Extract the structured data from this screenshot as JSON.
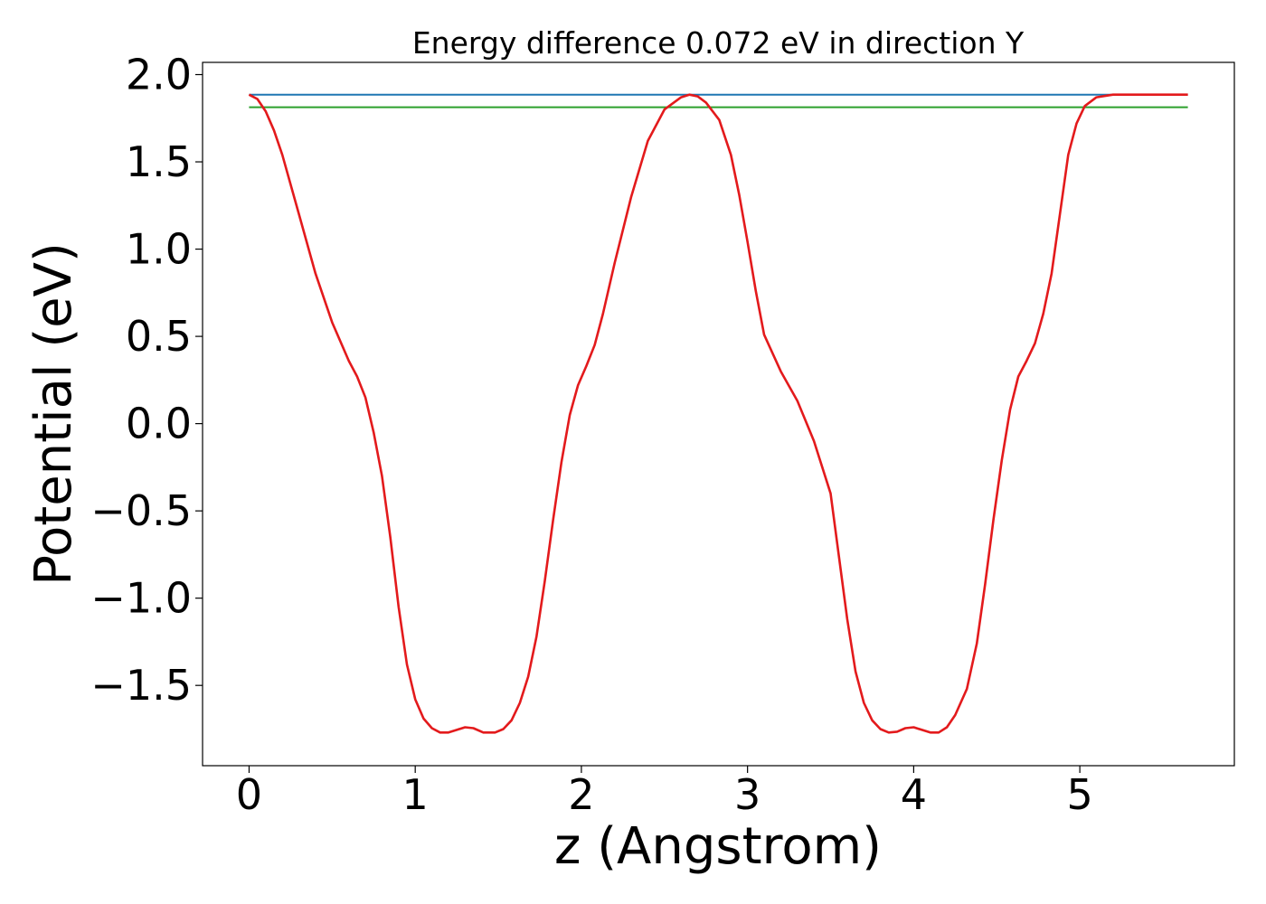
{
  "chart_data": {
    "type": "line",
    "title": "Energy difference 0.072 eV in direction Y",
    "xlabel": "z (Angstrom)",
    "ylabel": "Potential (eV)",
    "xlim": [
      -0.28,
      5.93
    ],
    "ylim": [
      -1.96,
      2.07
    ],
    "x_ticks": [
      0,
      1,
      2,
      3,
      4,
      5
    ],
    "x_tick_labels": [
      "0",
      "1",
      "2",
      "3",
      "4",
      "5"
    ],
    "y_ticks": [
      2.0,
      1.5,
      1.0,
      0.5,
      0.0,
      -0.5,
      -1.0,
      -1.5
    ],
    "y_tick_labels": [
      "2.0",
      "1.5",
      "1.0",
      "0.5",
      "0.0",
      "−0.5",
      "−1.0",
      "−1.5"
    ],
    "grid": false,
    "series": [
      {
        "color": "#1f77b4",
        "x": [
          0.0,
          5.65
        ],
        "y": [
          1.885,
          1.885
        ]
      },
      {
        "color": "#2ca02c",
        "x": [
          0.0,
          5.65
        ],
        "y": [
          1.813,
          1.813
        ]
      },
      {
        "color": "#e31a1c",
        "x": [
          0.0,
          0.05,
          0.1,
          0.15,
          0.2,
          0.3,
          0.4,
          0.5,
          0.6,
          0.65,
          0.7,
          0.75,
          0.8,
          0.85,
          0.9,
          0.95,
          1.0,
          1.05,
          1.1,
          1.15,
          1.2,
          1.25,
          1.3,
          1.35,
          1.41,
          1.48,
          1.53,
          1.58,
          1.63,
          1.68,
          1.73,
          1.78,
          1.83,
          1.88,
          1.93,
          1.98,
          2.03,
          2.08,
          2.13,
          2.2,
          2.3,
          2.4,
          2.5,
          2.6,
          2.65,
          2.7,
          2.75,
          2.83,
          2.9,
          2.95,
          3.0,
          3.05,
          3.1,
          3.2,
          3.3,
          3.4,
          3.5,
          3.55,
          3.6,
          3.65,
          3.7,
          3.75,
          3.8,
          3.85,
          3.9,
          3.95,
          4.0,
          4.05,
          4.1,
          4.15,
          4.2,
          4.25,
          4.32,
          4.38,
          4.43,
          4.48,
          4.53,
          4.58,
          4.63,
          4.68,
          4.73,
          4.78,
          4.83,
          4.88,
          4.93,
          4.98,
          5.03,
          5.1,
          5.2,
          5.3,
          5.4,
          5.5,
          5.55,
          5.6,
          5.65
        ],
        "y": [
          1.885,
          1.86,
          1.79,
          1.68,
          1.54,
          1.2,
          0.86,
          0.58,
          0.36,
          0.27,
          0.15,
          -0.05,
          -0.3,
          -0.65,
          -1.05,
          -1.38,
          -1.58,
          -1.69,
          -1.745,
          -1.77,
          -1.77,
          -1.755,
          -1.74,
          -1.745,
          -1.77,
          -1.77,
          -1.75,
          -1.7,
          -1.6,
          -1.45,
          -1.22,
          -0.9,
          -0.55,
          -0.22,
          0.05,
          0.22,
          0.33,
          0.45,
          0.63,
          0.92,
          1.3,
          1.62,
          1.8,
          1.87,
          1.885,
          1.875,
          1.84,
          1.74,
          1.54,
          1.31,
          1.04,
          0.76,
          0.51,
          0.3,
          0.13,
          -0.1,
          -0.4,
          -0.76,
          -1.12,
          -1.42,
          -1.6,
          -1.7,
          -1.75,
          -1.77,
          -1.765,
          -1.745,
          -1.74,
          -1.755,
          -1.77,
          -1.77,
          -1.74,
          -1.67,
          -1.52,
          -1.26,
          -0.92,
          -0.55,
          -0.21,
          0.08,
          0.27,
          0.36,
          0.46,
          0.63,
          0.86,
          1.2,
          1.54,
          1.72,
          1.82,
          1.87,
          1.885,
          1.885,
          1.885,
          1.885,
          1.885,
          1.885,
          1.885
        ]
      }
    ]
  }
}
